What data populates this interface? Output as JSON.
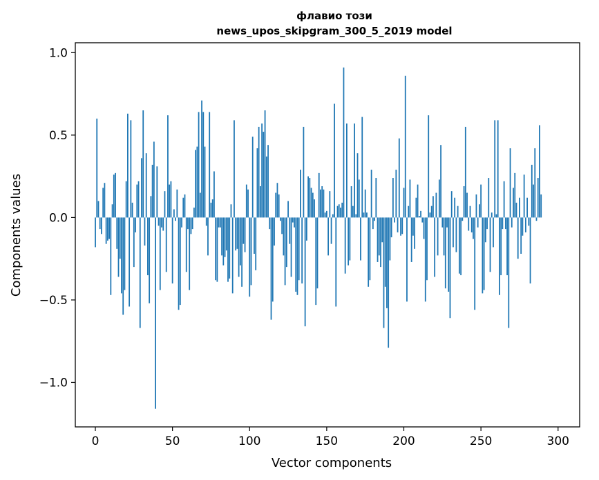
{
  "chart_data": {
    "type": "bar",
    "title": "флавио този",
    "subtitle": "news_upos_skipgram_300_5_2019 model",
    "xlabel": "Vector components",
    "ylabel": "Components values",
    "xlim": [
      -13,
      314
    ],
    "ylim": [
      -1.27,
      1.06
    ],
    "xticks": [
      0,
      50,
      100,
      150,
      200,
      250,
      300
    ],
    "yticks": [
      -1.0,
      -0.5,
      0.0,
      0.5,
      1.0
    ],
    "ytick_labels": [
      "−1.0",
      "−0.5",
      "0.0",
      "0.5",
      "1.0"
    ],
    "grid": false,
    "bar_color": "#1f77b4",
    "values": [
      -0.18,
      0.6,
      0.1,
      -0.07,
      -0.1,
      0.18,
      0.21,
      -0.16,
      -0.14,
      -0.13,
      -0.47,
      0.08,
      0.26,
      0.27,
      -0.19,
      -0.36,
      -0.25,
      -0.46,
      -0.59,
      -0.44,
      0.22,
      0.63,
      -0.54,
      0.59,
      0.09,
      -0.3,
      -0.09,
      0.2,
      0.22,
      -0.67,
      0.36,
      0.65,
      -0.17,
      0.39,
      -0.35,
      -0.52,
      0.13,
      0.32,
      0.46,
      -1.16,
      0.31,
      -0.05,
      -0.44,
      -0.06,
      -0.08,
      0.16,
      -0.33,
      0.62,
      0.2,
      0.22,
      -0.4,
      0.05,
      -0.02,
      0.17,
      -0.56,
      -0.53,
      -0.06,
      0.12,
      0.14,
      -0.33,
      -0.07,
      -0.44,
      -0.1,
      -0.07,
      0.06,
      0.41,
      0.43,
      0.64,
      0.15,
      0.71,
      0.64,
      0.43,
      -0.05,
      -0.23,
      0.64,
      0.09,
      0.11,
      0.28,
      -0.38,
      -0.39,
      -0.06,
      -0.06,
      -0.23,
      -0.29,
      -0.24,
      -0.2,
      -0.39,
      -0.37,
      0.08,
      -0.46,
      0.59,
      -0.2,
      -0.19,
      -0.36,
      -0.29,
      -0.42,
      -0.16,
      -0.21,
      0.2,
      0.17,
      -0.48,
      -0.41,
      0.49,
      -0.22,
      -0.32,
      0.42,
      0.55,
      0.19,
      0.57,
      0.52,
      0.65,
      0.37,
      0.44,
      -0.07,
      -0.62,
      -0.51,
      -0.17,
      0.15,
      0.21,
      0.14,
      -0.02,
      -0.1,
      -0.23,
      -0.41,
      -0.3,
      0.1,
      -0.16,
      -0.36,
      -0.03,
      -0.06,
      -0.45,
      -0.47,
      -0.38,
      0.29,
      -0.4,
      0.55,
      -0.66,
      -0.14,
      0.25,
      0.24,
      0.18,
      0.15,
      0.11,
      -0.53,
      -0.43,
      0.27,
      0.17,
      0.19,
      0.17,
      0.03,
      0.04,
      -0.23,
      0.16,
      -0.16,
      0.02,
      0.69,
      -0.54,
      0.07,
      0.08,
      0.06,
      0.09,
      0.91,
      -0.34,
      0.57,
      -0.29,
      -0.26,
      0.19,
      0.07,
      0.57,
      0.02,
      0.39,
      0.23,
      -0.26,
      0.61,
      0.03,
      0.17,
      0.03,
      -0.42,
      -0.38,
      0.29,
      -0.07,
      -0.02,
      0.24,
      -0.27,
      -0.23,
      -0.3,
      -0.15,
      -0.67,
      -0.42,
      -0.55,
      -0.79,
      -0.26,
      -0.12,
      0.24,
      -0.03,
      0.29,
      -0.09,
      0.48,
      -0.11,
      -0.1,
      0.18,
      0.86,
      -0.51,
      0.07,
      0.23,
      -0.27,
      -0.11,
      -0.19,
      0.12,
      0.2,
      0.01,
      0.04,
      -0.03,
      -0.13,
      -0.51,
      -0.38,
      0.62,
      0.03,
      0.07,
      0.13,
      -0.36,
      0.15,
      -0.23,
      0.23,
      0.44,
      -0.06,
      -0.23,
      -0.43,
      -0.06,
      -0.45,
      -0.61,
      0.16,
      -0.18,
      0.12,
      -0.21,
      0.07,
      -0.34,
      -0.35,
      -0.02,
      0.19,
      0.55,
      0.15,
      -0.08,
      0.07,
      -0.09,
      -0.13,
      -0.56,
      0.14,
      -0.06,
      0.08,
      0.2,
      -0.46,
      -0.44,
      -0.15,
      -0.07,
      0.24,
      -0.33,
      0.03,
      -0.18,
      0.59,
      0.02,
      0.59,
      -0.47,
      -0.35,
      -0.07,
      0.22,
      -0.07,
      -0.35,
      -0.67,
      0.42,
      -0.06,
      0.18,
      0.27,
      0.09,
      -0.25,
      0.12,
      -0.22,
      -0.11,
      0.26,
      -0.09,
      0.12,
      -0.05,
      -0.4,
      0.32,
      0.2,
      0.42,
      -0.02,
      0.24,
      0.56,
      0.14
    ],
    "__note_last_values_continue": null
  }
}
